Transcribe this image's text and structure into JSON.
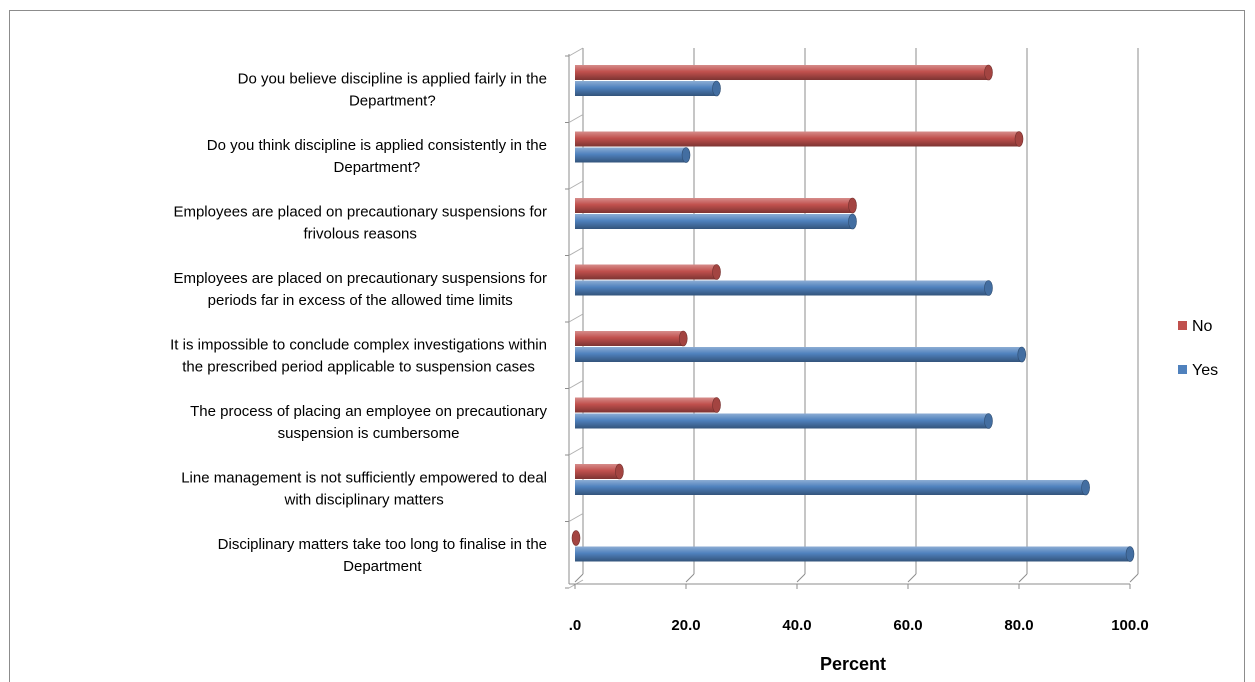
{
  "chart_data": {
    "type": "bar",
    "orientation": "horizontal",
    "categories": [
      [
        "Do you believe discipline is applied fairly in the",
        "Department?"
      ],
      [
        "Do you think discipline is applied consistently in the",
        "Department?"
      ],
      [
        "Employees are placed on precautionary suspensions for",
        "frivolous reasons"
      ],
      [
        "Employees are placed on precautionary suspensions for",
        "periods far in excess of the allowed time limits"
      ],
      [
        "It is impossible to conclude complex investigations within",
        "the prescribed period applicable to suspension cases"
      ],
      [
        "The process of placing an employee on precautionary",
        "suspension is cumbersome"
      ],
      [
        "Line management is not sufficiently empowered to deal",
        "with disciplinary matters"
      ],
      [
        "Disciplinary matters take too long to finalise in the",
        "Department"
      ]
    ],
    "series": [
      {
        "name": "No",
        "color": "#c0504d",
        "values": [
          74.5,
          80,
          50,
          25.5,
          19.5,
          25.5,
          8,
          0
        ]
      },
      {
        "name": "Yes",
        "color": "#4f81bd",
        "values": [
          25.5,
          20,
          50,
          74.5,
          80.5,
          74.5,
          92,
          100
        ]
      }
    ],
    "xlabel": "Percent",
    "ylabel": "",
    "xlim": [
      0,
      100
    ],
    "xticks": [
      ".0",
      "20.0",
      "40.0",
      "60.0",
      "80.0",
      "100.0"
    ],
    "grid": true,
    "legend_position": "right",
    "legend_order": [
      "No",
      "Yes"
    ]
  }
}
